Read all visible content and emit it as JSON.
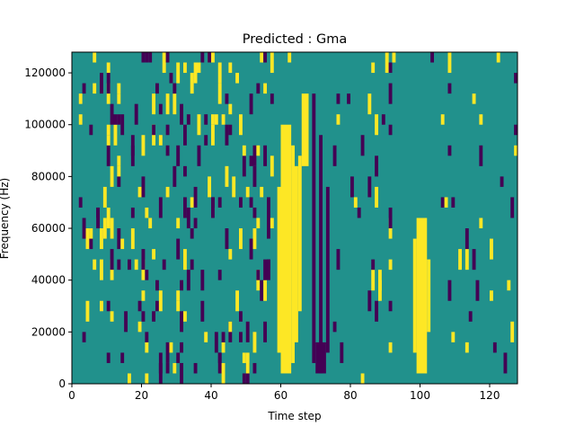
{
  "chart_data": {
    "type": "heatmap",
    "title": "Predicted : Gma",
    "xlabel": "Time step",
    "ylabel": "Frequency (Hz)",
    "xlim": [
      0,
      128
    ],
    "ylim": [
      0,
      128000
    ],
    "x_ticks": [
      0,
      20,
      40,
      60,
      80,
      100,
      120
    ],
    "y_ticks": [
      0,
      20000,
      40000,
      60000,
      80000,
      100000,
      120000
    ],
    "x_tick_labels": [
      "0",
      "20",
      "40",
      "60",
      "80",
      "100",
      "120"
    ],
    "y_tick_labels": [
      "0",
      "20000",
      "40000",
      "60000",
      "80000",
      "100000",
      "120000"
    ],
    "levels": [
      {
        "value": 0,
        "color": "#440154"
      },
      {
        "value": 0.5,
        "color": "#21918c"
      },
      {
        "value": 1,
        "color": "#fde725"
      }
    ],
    "background_value": 0.5,
    "grid": false,
    "legend": "none",
    "bright_bands": [
      {
        "x_range": [
          60,
          63
        ],
        "y_range": [
          4000,
          100000
        ]
      },
      {
        "x_range": [
          63,
          64
        ],
        "y_range": [
          8000,
          92000
        ]
      },
      {
        "x_range": [
          59,
          60
        ],
        "y_range": [
          12000,
          76000
        ]
      },
      {
        "x_range": [
          64,
          65
        ],
        "y_range": [
          16000,
          84000
        ]
      },
      {
        "x_range": [
          65,
          66
        ],
        "y_range": [
          28000,
          88000
        ]
      },
      {
        "x_range": [
          66,
          68
        ],
        "y_range": [
          84000,
          112000
        ]
      },
      {
        "x_range": [
          99,
          102
        ],
        "y_range": [
          4000,
          64000
        ]
      },
      {
        "x_range": [
          98,
          99
        ],
        "y_range": [
          12000,
          56000
        ]
      },
      {
        "x_range": [
          102,
          103
        ],
        "y_range": [
          20000,
          48000
        ]
      }
    ],
    "dark_bands": [
      {
        "x_range": [
          69,
          70
        ],
        "y_range": [
          8000,
          112000
        ]
      },
      {
        "x_range": [
          71,
          72
        ],
        "y_range": [
          4000,
          96000
        ]
      },
      {
        "x_range": [
          73,
          74
        ],
        "y_range": [
          12000,
          76000
        ]
      },
      {
        "x_range": [
          70,
          73
        ],
        "y_range": [
          4000,
          16000
        ]
      }
    ]
  }
}
